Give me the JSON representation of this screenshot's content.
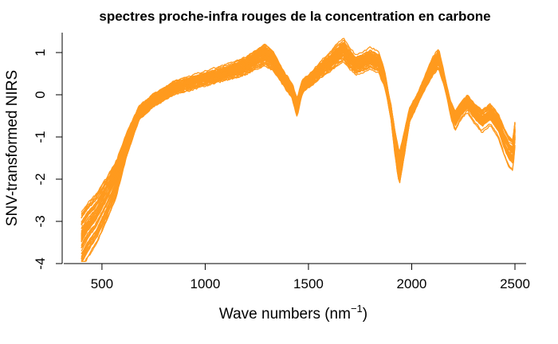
{
  "chart_data": {
    "type": "line",
    "title": "spectres proche-infra rouges de la concentration en carbone",
    "xlabel": "Wave numbers (nm",
    "xlabel_superscript": "−1",
    "xlabel_close": ")",
    "ylabel": "SNV-transformed NIRS",
    "xlim": [
      400,
      2500
    ],
    "ylim": [
      -4,
      1.5
    ],
    "x_ticks": [
      500,
      1000,
      1500,
      2000,
      2500
    ],
    "y_ticks": [
      -4,
      -3,
      -2,
      -1,
      0,
      1
    ],
    "grid": false,
    "series_color": "#FF9A1E",
    "series_count": 60,
    "representative_curve": {
      "x": [
        400,
        430,
        470,
        520,
        570,
        620,
        680,
        750,
        850,
        950,
        1050,
        1150,
        1200,
        1250,
        1290,
        1330,
        1360,
        1390,
        1420,
        1445,
        1470,
        1520,
        1560,
        1600,
        1640,
        1670,
        1700,
        1730,
        1760,
        1800,
        1840,
        1870,
        1900,
        1920,
        1940,
        1960,
        1990,
        2030,
        2070,
        2100,
        2130,
        2160,
        2190,
        2210,
        2240,
        2270,
        2300,
        2340,
        2380,
        2420,
        2450,
        2470,
        2490,
        2500
      ],
      "y": [
        -3.45,
        -3.2,
        -2.95,
        -2.5,
        -2.0,
        -1.2,
        -0.45,
        -0.15,
        0.15,
        0.3,
        0.45,
        0.6,
        0.7,
        0.85,
        0.95,
        0.8,
        0.55,
        0.3,
        0.1,
        -0.3,
        0.2,
        0.4,
        0.6,
        0.75,
        0.95,
        1.05,
        0.85,
        0.7,
        0.75,
        0.85,
        0.75,
        0.35,
        -0.45,
        -1.2,
        -1.8,
        -1.3,
        -0.5,
        -0.1,
        0.35,
        0.65,
        0.85,
        0.3,
        -0.35,
        -0.6,
        -0.35,
        -0.2,
        -0.4,
        -0.6,
        -0.45,
        -0.7,
        -1.1,
        -1.3,
        -1.4,
        -0.9
      ]
    }
  }
}
